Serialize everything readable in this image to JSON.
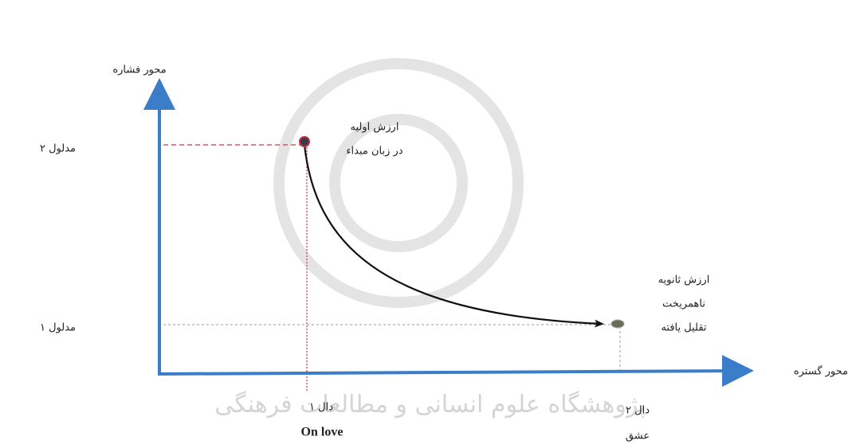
{
  "y_axis": {
    "label": "محور فشاره"
  },
  "x_axis": {
    "label": "محور گستره"
  },
  "y_levels": [
    {
      "label": "مدلول ۲"
    },
    {
      "label": "مدلول ۱"
    }
  ],
  "points": [
    {
      "lines": [
        "ارزش اولیه",
        "در زبان مبداء"
      ]
    },
    {
      "lines": [
        "ارزش ثانویه",
        "ناهمریخت",
        "تقلیل یافته"
      ]
    }
  ],
  "x_levels": [
    {
      "label": "دال ۱",
      "sublabel": "On love"
    },
    {
      "label": "دال ۲",
      "sublabel": "عشق"
    }
  ],
  "watermark": "پژوهشگاه علوم انسانی و مطالعات فرهنگی"
}
